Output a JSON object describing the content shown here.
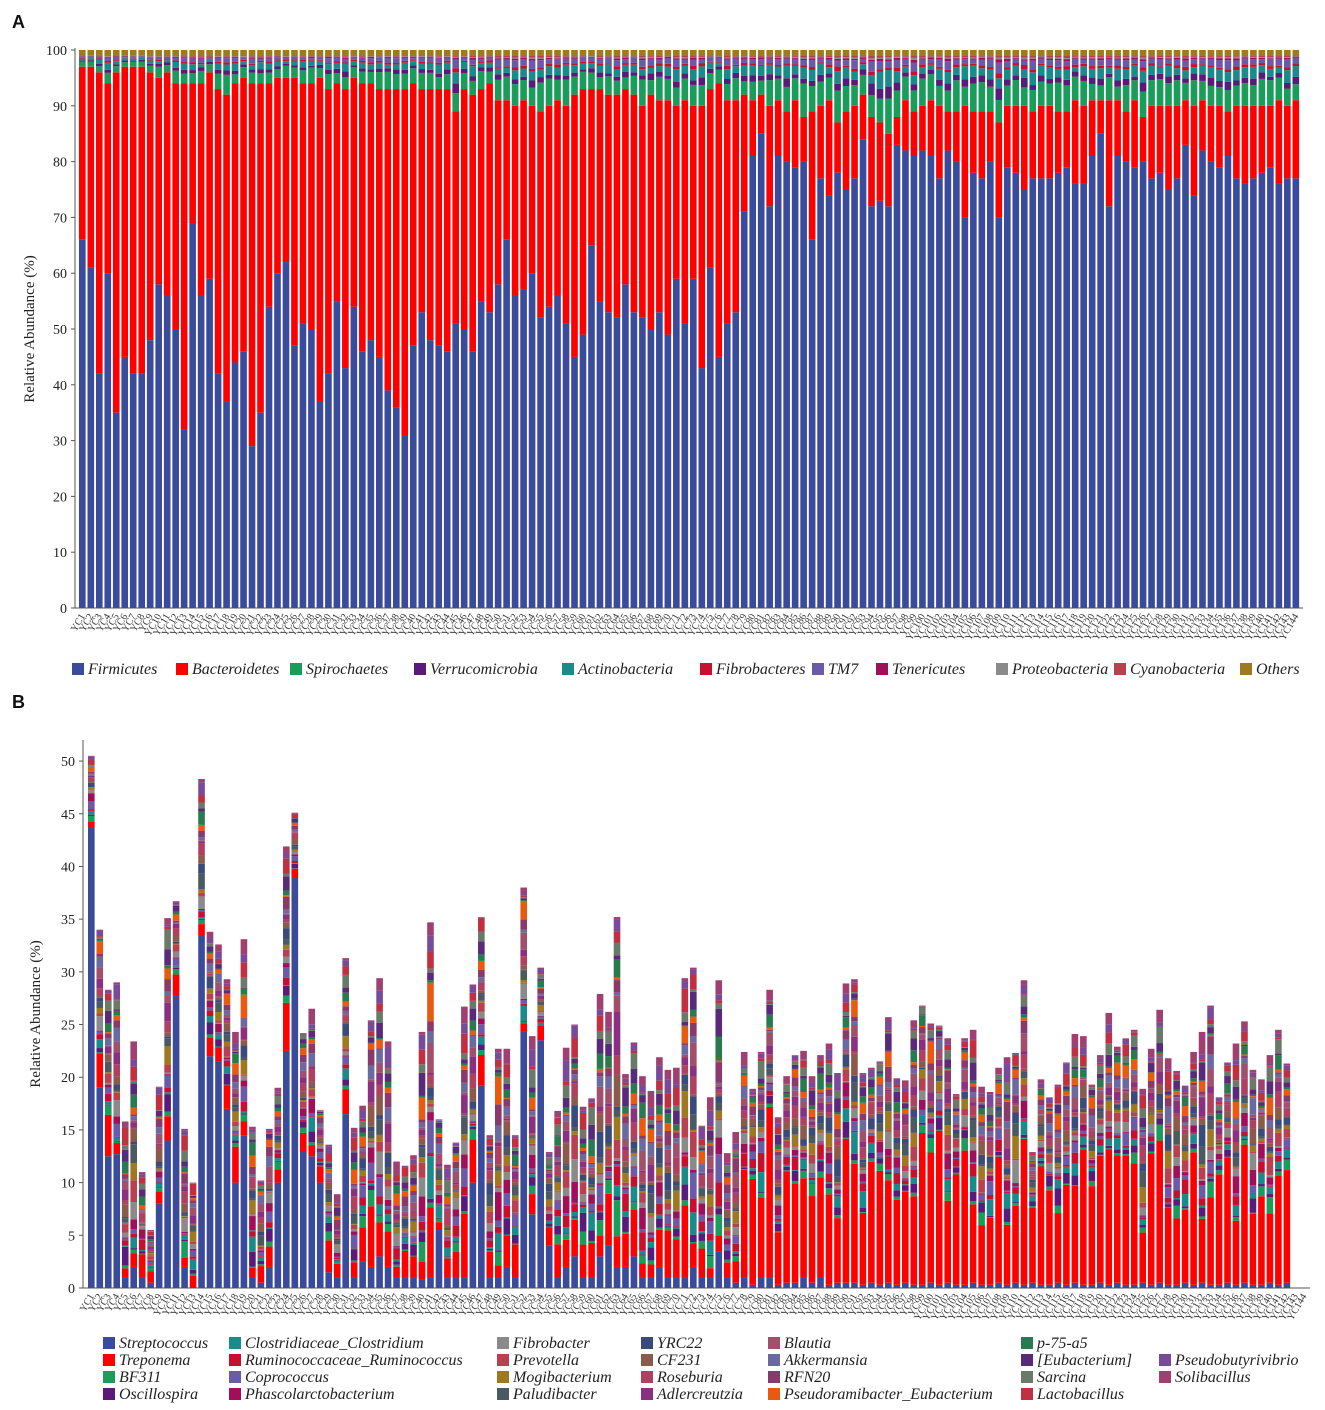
{
  "panels": {
    "a": "A",
    "b": "B"
  },
  "chart_data": [
    {
      "type": "bar",
      "stacked": true,
      "percent_stacked": true,
      "title": "",
      "panel": "A",
      "xlabel": "",
      "ylabel": "Relative Abundance (%)",
      "ylim": [
        0,
        100
      ],
      "yticks": [
        0,
        10,
        20,
        30,
        40,
        50,
        60,
        70,
        80,
        90,
        100
      ],
      "n_samples": 144,
      "series": [
        {
          "name": "Firmicutes",
          "color": "#3a4b9c"
        },
        {
          "name": "Bacteroidetes",
          "color": "#ff0000"
        },
        {
          "name": "Spirochaetes",
          "color": "#1a9c5a"
        },
        {
          "name": "Verrucomicrobia",
          "color": "#5a1a7a"
        },
        {
          "name": "Actinobacteria",
          "color": "#1a8a8a"
        },
        {
          "name": "Fibrobacteres",
          "color": "#c8102e"
        },
        {
          "name": "TM7",
          "color": "#6a5aa8"
        },
        {
          "name": "Tenericutes",
          "color": "#a0105a"
        },
        {
          "name": "Proteobacteria",
          "color": "#8a8a8a"
        },
        {
          "name": "Cyanobacteria",
          "color": "#b84050"
        },
        {
          "name": "Others",
          "color": "#a07820"
        }
      ],
      "firmicutes_values": [
        66,
        61,
        42,
        60,
        35,
        45,
        42,
        42,
        48,
        58,
        56,
        50,
        32,
        69,
        56,
        59,
        42,
        37,
        44,
        46,
        29,
        35,
        54,
        60,
        62,
        47,
        51,
        50,
        37,
        42,
        55,
        43,
        54,
        46,
        48,
        45,
        39,
        36,
        31,
        47,
        53,
        48,
        47,
        46,
        51,
        50,
        46,
        55,
        53,
        58,
        66,
        56,
        57,
        60,
        52,
        54,
        56,
        51,
        45,
        49,
        65,
        55,
        53,
        52,
        58,
        53,
        52,
        50,
        53,
        49,
        59,
        51,
        59,
        43,
        61,
        45,
        51,
        53,
        71,
        81,
        85,
        72,
        81,
        80,
        79,
        80,
        66,
        77,
        74,
        78,
        75,
        77,
        84,
        72,
        73,
        72,
        83,
        82,
        81,
        82,
        81,
        77,
        82,
        80,
        70,
        78,
        77,
        80,
        70,
        79,
        78,
        75,
        77,
        77,
        77,
        78,
        79,
        76,
        76,
        81,
        85,
        72,
        81,
        80,
        79,
        80,
        77,
        78,
        75,
        77,
        83,
        74,
        82,
        80,
        79,
        81,
        77,
        76,
        77,
        78,
        79,
        76,
        77,
        77
      ],
      "bacteroidetes_values": [
        31,
        36,
        54,
        34,
        61,
        52,
        55,
        55,
        48,
        37,
        40,
        44,
        62,
        25,
        38,
        37,
        51,
        55,
        50,
        49,
        65,
        59,
        40,
        35,
        33,
        48,
        43,
        44,
        58,
        51,
        39,
        50,
        41,
        48,
        46,
        48,
        54,
        57,
        62,
        47,
        40,
        45,
        46,
        47,
        38,
        43,
        46,
        38,
        41,
        33,
        25,
        34,
        34,
        30,
        37,
        36,
        35,
        39,
        47,
        44,
        28,
        38,
        39,
        40,
        35,
        39,
        38,
        42,
        38,
        42,
        31,
        40,
        31,
        47,
        32,
        49,
        40,
        38,
        21,
        10,
        7,
        18,
        10,
        9,
        12,
        8,
        23,
        13,
        17,
        9,
        14,
        13,
        8,
        16,
        14,
        13,
        5,
        9,
        8,
        8,
        10,
        13,
        7,
        9,
        20,
        11,
        12,
        9,
        17,
        11,
        12,
        15,
        12,
        13,
        13,
        11,
        10,
        15,
        14,
        10,
        6,
        19,
        10,
        9,
        12,
        8,
        13,
        12,
        15,
        13,
        8,
        16,
        9,
        10,
        11,
        8,
        13,
        14,
        13,
        12,
        11,
        15,
        13,
        14
      ]
    },
    {
      "type": "bar",
      "stacked": true,
      "title": "",
      "panel": "B",
      "xlabel": "",
      "ylabel": "Relative Abundance (%)",
      "ylim": [
        0,
        52
      ],
      "yticks": [
        0,
        5,
        10,
        15,
        20,
        25,
        30,
        35,
        40,
        45,
        50
      ],
      "n_samples": 144,
      "series": [
        {
          "name": "Streptococcus",
          "color": "#3a4b9c"
        },
        {
          "name": "Treponema",
          "color": "#ff0000"
        },
        {
          "name": "BF311",
          "color": "#1a9c5a"
        },
        {
          "name": "Oscillospira",
          "color": "#5a1a7a"
        },
        {
          "name": "Clostridiaceae_Clostridium",
          "color": "#1a8a8a"
        },
        {
          "name": "Ruminococcaceae_Ruminococcus",
          "color": "#c8102e"
        },
        {
          "name": "Coprococcus",
          "color": "#6a5aa8"
        },
        {
          "name": "Phascolarctobacterium",
          "color": "#a0105a"
        },
        {
          "name": "Fibrobacter",
          "color": "#8a8a8a"
        },
        {
          "name": "Prevotella",
          "color": "#b84050"
        },
        {
          "name": "Mogibacterium",
          "color": "#a07820"
        },
        {
          "name": "Paludibacter",
          "color": "#4a5a60"
        },
        {
          "name": "YRC22",
          "color": "#3a4a7a"
        },
        {
          "name": "CF231",
          "color": "#8a5a4a"
        },
        {
          "name": "Roseburia",
          "color": "#b04060"
        },
        {
          "name": "Adlercreutzia",
          "color": "#8a3080"
        },
        {
          "name": "Blautia",
          "color": "#a0506a"
        },
        {
          "name": "Akkermansia",
          "color": "#6a6aa0"
        },
        {
          "name": "RFN20",
          "color": "#8a3a6a"
        },
        {
          "name": "Pseudoramibacter_Eubacterium",
          "color": "#e85a10"
        },
        {
          "name": "p-75-a5",
          "color": "#2a7a50"
        },
        {
          "name": "[Eubacterium]",
          "color": "#5a2a7a"
        },
        {
          "name": "Sarcina",
          "color": "#6a7a6a"
        },
        {
          "name": "Lactobacillus",
          "color": "#c03040"
        },
        {
          "name": "Pseudobutyrivibrio",
          "color": "#7a4a9a"
        },
        {
          "name": "Solibacillus",
          "color": "#a04070"
        }
      ],
      "totals": [
        50.5,
        34,
        28.3,
        29,
        15.8,
        23.4,
        11,
        5.5,
        19.1,
        35.1,
        36.7,
        15.1,
        10,
        48.3,
        33.8,
        32.6,
        29.3,
        24.3,
        33.1,
        15.3,
        10.2,
        15.1,
        19,
        41.9,
        45.1,
        24.2,
        26.5,
        16.9,
        13.6,
        8.9,
        31.3,
        15.2,
        17.3,
        25.4,
        29.4,
        23.4,
        12,
        11.6,
        12.6,
        24.3,
        34.7,
        16,
        11.7,
        13.8,
        26.7,
        28.8,
        35.2,
        14.5,
        22.7,
        22.7,
        14.5,
        38,
        23.9,
        30.4,
        12.9,
        16.8,
        22.8,
        25,
        17.2,
        18,
        27.9,
        26.2,
        35.2,
        20.3,
        23.3,
        20.1,
        18.7,
        21.9,
        20.7,
        20.9,
        29.4,
        30.4,
        15.4,
        18.1,
        29.2,
        12.8,
        14.8,
        22.4,
        18.9,
        22.4,
        28.3,
        16.2,
        20.1,
        22.1,
        22.5,
        20.1,
        22.1,
        23.2,
        20.4,
        28.9,
        29.3,
        20.4,
        20.9,
        21.5,
        25.7,
        19.9,
        19.7,
        25.4,
        26.8,
        25.1,
        24.9,
        23.7,
        18.4,
        23.7,
        24.5,
        19.1,
        18.6,
        20.9,
        21.9,
        22.3,
        29.2,
        12.9,
        19.8,
        18.1,
        19.3,
        21.4,
        24.1,
        23.9,
        19.3,
        22.1,
        26.1,
        22.9,
        23.7,
        24.5,
        18.9,
        22.7,
        26.4,
        21.8,
        20.6,
        19.2,
        22.4,
        24.3,
        26.8,
        18.1,
        21.4,
        23.2,
        25.3,
        20.7,
        19.8,
        22.1,
        24.5,
        21.3,
        22.8,
        29.2
      ],
      "streptococcus_values": [
        43.7,
        19,
        12.5,
        12.7,
        1,
        2,
        1,
        0.5,
        8,
        14,
        27.8,
        2,
        0,
        33.5,
        22,
        21.5,
        17,
        10,
        14.5,
        1,
        0.5,
        2,
        10,
        22.5,
        39,
        13,
        12.5,
        10,
        1.5,
        1,
        16.5,
        1,
        2.5,
        2,
        3,
        2,
        1,
        1,
        1,
        0.8,
        1,
        5.5,
        1,
        1,
        1,
        10,
        19.2,
        1,
        1,
        2,
        1,
        24.3,
        7,
        23.5,
        4,
        1,
        2,
        3,
        1,
        1,
        3,
        4,
        2,
        2,
        3,
        1,
        1,
        2,
        1,
        1,
        1,
        2,
        1,
        1,
        3.5,
        1,
        0.5,
        1,
        0.3,
        1,
        1,
        0.3,
        0.5,
        0.5,
        1,
        0.5,
        1,
        0.3,
        0.5,
        0.5,
        0.5,
        0.3,
        0.5,
        0.3,
        0.5,
        0.3,
        0.5,
        0.3,
        0.3,
        0.5,
        0.3,
        0.5,
        0.3,
        0.3,
        0.5,
        0.3,
        0.3,
        0.5,
        0.3,
        0.5,
        0.3,
        0.5,
        0.3,
        0.3,
        0.5,
        0.3,
        0.5,
        0.3,
        0.3,
        0.5,
        0.3,
        0.5,
        0.3,
        0.3,
        0.5,
        0.3,
        0.5,
        0.3,
        0.3,
        0.5,
        0.3,
        0.5,
        0.3,
        0.3,
        0.5,
        0.3,
        0.5,
        0.3,
        0.3,
        0.5,
        0.3,
        0.5
      ]
    }
  ],
  "xticklabel_sample": "YC",
  "legend_a": [
    "Firmicutes",
    "Bacteroidetes",
    "Spirochaetes",
    "Verrucomicrobia",
    "Actinobacteria",
    "Fibrobacteres",
    "TM7",
    "Tenericutes",
    "Proteobacteria",
    "Cyanobacteria",
    "Others"
  ],
  "legend_b_columns": [
    [
      "Streptococcus",
      "Treponema",
      "BF311",
      "Oscillospira"
    ],
    [
      "Clostridiaceae_Clostridium",
      "Ruminococcaceae_Ruminococcus",
      "Coprococcus",
      "Phascolarctobacterium"
    ],
    [
      "Fibrobacter",
      "Prevotella",
      "Mogibacterium",
      "Paludibacter"
    ],
    [
      "YRC22",
      "CF231",
      "Roseburia",
      "Adlercreutzia"
    ],
    [
      "Blautia",
      "Akkermansia",
      "RFN20",
      "Pseudoramibacter_Eubacterium"
    ],
    [
      "p-75-a5",
      "[Eubacterium]",
      "Sarcina",
      "Lactobacillus"
    ],
    [
      "Pseudobutyrivibrio",
      "Solibacillus"
    ]
  ]
}
